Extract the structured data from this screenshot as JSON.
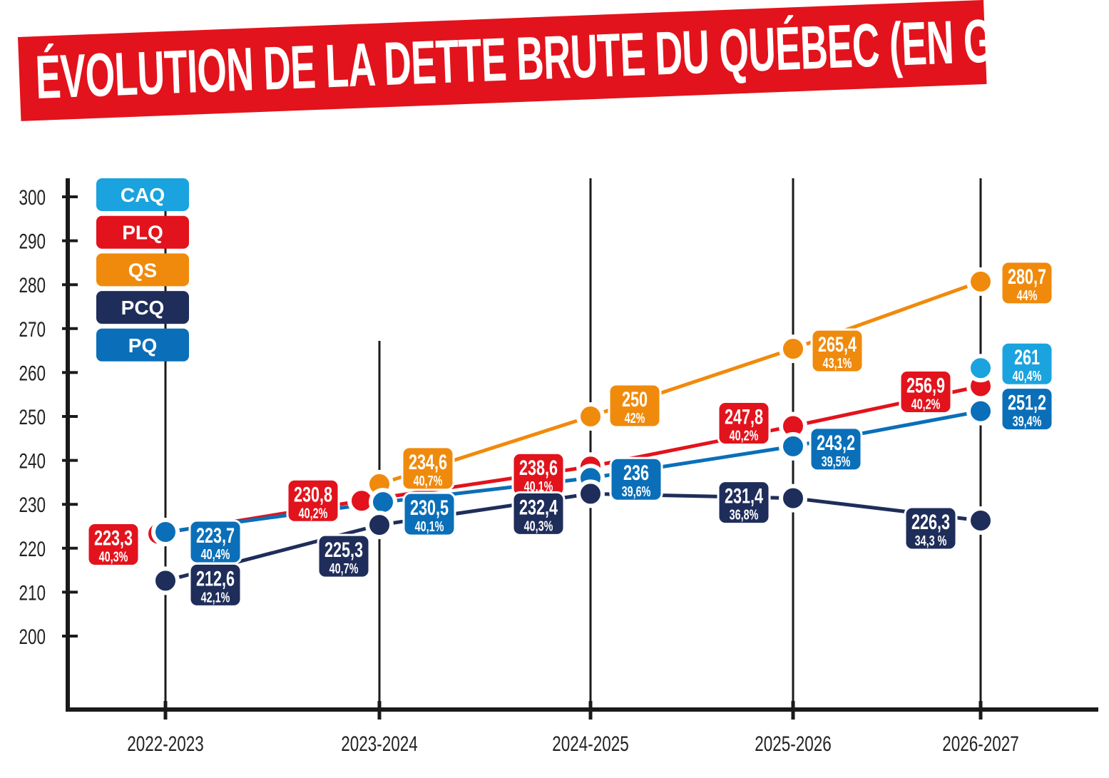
{
  "chart_data": {
    "type": "line",
    "title": "ÉVOLUTION DE LA DETTE BRUTE DU QUÉBEC (EN G$)",
    "categories": [
      "2022-2023",
      "2023-2024",
      "2024-2025",
      "2025-2026",
      "2026-2027"
    ],
    "ylim": [
      200,
      300
    ],
    "yticks": [
      300,
      290,
      280,
      270,
      260,
      250,
      240,
      230,
      220,
      210,
      200
    ],
    "grid": false,
    "legend_position": "top-left",
    "series": [
      {
        "name": "CAQ",
        "color": "#1aa3de",
        "values": [
          null,
          null,
          null,
          null,
          261
        ],
        "labels": [
          null,
          null,
          null,
          null,
          "261"
        ],
        "percents": [
          null,
          null,
          null,
          null,
          "40,4%"
        ]
      },
      {
        "name": "PLQ",
        "color": "#e2131c",
        "values": [
          223.3,
          230.8,
          238.6,
          247.8,
          256.9
        ],
        "labels": [
          "223,3",
          "230,8",
          "238,6",
          "247,8",
          "256,9"
        ],
        "percents": [
          "40,3%",
          "40,2%",
          "40,1%",
          "40,2%",
          "40,2%"
        ]
      },
      {
        "name": "QS",
        "color": "#f08a0c",
        "values": [
          null,
          234.6,
          250,
          265.4,
          280.7
        ],
        "labels": [
          null,
          "234,6",
          "250",
          "265,4",
          "280,7"
        ],
        "percents": [
          null,
          "40,7%",
          "42%",
          "43,1%",
          "44%"
        ]
      },
      {
        "name": "PCQ",
        "color": "#1f2d5a",
        "values": [
          212.6,
          225.3,
          232.4,
          231.4,
          226.3
        ],
        "labels": [
          "212,6",
          "225,3",
          "232,4",
          "231,4",
          "226,3"
        ],
        "percents": [
          "42,1%",
          "40,7%",
          "40,3%",
          "36,8%",
          "34,3 %"
        ]
      },
      {
        "name": "PQ",
        "color": "#0a6fb8",
        "values": [
          223.7,
          230.5,
          236,
          243.2,
          251.2
        ],
        "labels": [
          "223,7",
          "230,5",
          "236",
          "243,2",
          "251,2"
        ],
        "percents": [
          "40,4%",
          "40,1%",
          "39,6%",
          "39,5%",
          "39,4%"
        ]
      }
    ]
  }
}
